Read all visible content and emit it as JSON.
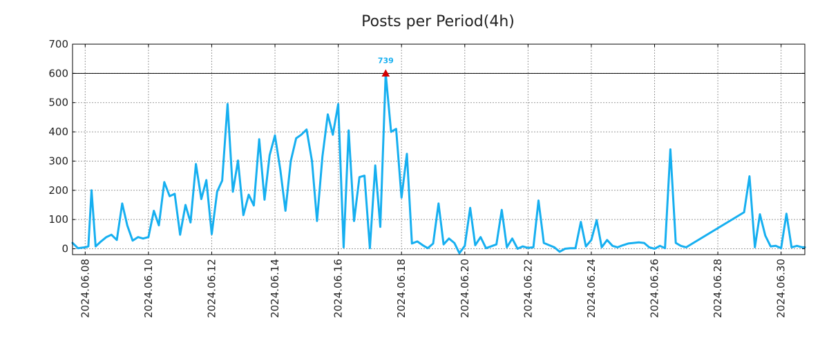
{
  "chart_data": {
    "type": "line",
    "title": "Posts per Period(4h)",
    "xlabel": "",
    "ylabel": "",
    "ylim": [
      -20,
      700
    ],
    "yticks": [
      0,
      100,
      200,
      300,
      400,
      500,
      600,
      700
    ],
    "xlim_days": [
      7.6,
      30.75
    ],
    "xticks": [
      {
        "day": 8,
        "label": "2024.06.08"
      },
      {
        "day": 10,
        "label": "2024.06.10"
      },
      {
        "day": 12,
        "label": "2024.06.12"
      },
      {
        "day": 14,
        "label": "2024.06.14"
      },
      {
        "day": 16,
        "label": "2024.06.16"
      },
      {
        "day": 18,
        "label": "2024.06.18"
      },
      {
        "day": 20,
        "label": "2024.06.20"
      },
      {
        "day": 22,
        "label": "2024.06.22"
      },
      {
        "day": 24,
        "label": "2024.06.24"
      },
      {
        "day": 26,
        "label": "2024.06.26"
      },
      {
        "day": 28,
        "label": "2024.06.28"
      },
      {
        "day": 30,
        "label": "2024.06.30"
      }
    ],
    "grid": true,
    "reference_line": 600,
    "peak": {
      "day": 17.5,
      "plotted_value": 600,
      "label": "739"
    },
    "colors": {
      "line": "#16aff0",
      "peak_marker": "#d40000",
      "peak_label": "#16aff0",
      "reference": "#000000",
      "grid": "#999999"
    },
    "series": [
      {
        "name": "posts",
        "points": [
          [
            7.6,
            20
          ],
          [
            7.77,
            2
          ],
          [
            8.0,
            5
          ],
          [
            8.1,
            8
          ],
          [
            8.2,
            200
          ],
          [
            8.33,
            8
          ],
          [
            8.5,
            25
          ],
          [
            8.67,
            40
          ],
          [
            8.83,
            48
          ],
          [
            9.0,
            30
          ],
          [
            9.17,
            155
          ],
          [
            9.33,
            80
          ],
          [
            9.5,
            28
          ],
          [
            9.67,
            40
          ],
          [
            9.83,
            35
          ],
          [
            10.0,
            40
          ],
          [
            10.17,
            130
          ],
          [
            10.33,
            80
          ],
          [
            10.5,
            228
          ],
          [
            10.67,
            180
          ],
          [
            10.83,
            188
          ],
          [
            11.0,
            48
          ],
          [
            11.17,
            150
          ],
          [
            11.33,
            90
          ],
          [
            11.5,
            290
          ],
          [
            11.67,
            170
          ],
          [
            11.83,
            235
          ],
          [
            12.0,
            50
          ],
          [
            12.17,
            195
          ],
          [
            12.33,
            233
          ],
          [
            12.5,
            495
          ],
          [
            12.67,
            195
          ],
          [
            12.83,
            302
          ],
          [
            13.0,
            115
          ],
          [
            13.17,
            185
          ],
          [
            13.33,
            148
          ],
          [
            13.5,
            375
          ],
          [
            13.67,
            168
          ],
          [
            13.83,
            320
          ],
          [
            14.0,
            388
          ],
          [
            14.17,
            270
          ],
          [
            14.33,
            130
          ],
          [
            14.5,
            300
          ],
          [
            14.67,
            378
          ],
          [
            14.83,
            390
          ],
          [
            15.0,
            408
          ],
          [
            15.17,
            300
          ],
          [
            15.33,
            95
          ],
          [
            15.5,
            315
          ],
          [
            15.67,
            460
          ],
          [
            15.83,
            390
          ],
          [
            16.0,
            495
          ],
          [
            16.17,
            5
          ],
          [
            16.33,
            405
          ],
          [
            16.5,
            95
          ],
          [
            16.67,
            245
          ],
          [
            16.83,
            250
          ],
          [
            17.0,
            2
          ],
          [
            17.17,
            285
          ],
          [
            17.33,
            75
          ],
          [
            17.5,
            600
          ],
          [
            17.67,
            400
          ],
          [
            17.83,
            410
          ],
          [
            18.0,
            175
          ],
          [
            18.17,
            325
          ],
          [
            18.33,
            18
          ],
          [
            18.5,
            25
          ],
          [
            18.67,
            12
          ],
          [
            18.83,
            2
          ],
          [
            19.0,
            18
          ],
          [
            19.17,
            155
          ],
          [
            19.33,
            15
          ],
          [
            19.5,
            35
          ],
          [
            19.67,
            20
          ],
          [
            19.83,
            -15
          ],
          [
            20.0,
            10
          ],
          [
            20.17,
            140
          ],
          [
            20.33,
            12
          ],
          [
            20.5,
            40
          ],
          [
            20.67,
            2
          ],
          [
            20.83,
            8
          ],
          [
            21.0,
            15
          ],
          [
            21.17,
            133
          ],
          [
            21.33,
            5
          ],
          [
            21.5,
            35
          ],
          [
            21.67,
            0
          ],
          [
            21.83,
            8
          ],
          [
            22.0,
            3
          ],
          [
            22.17,
            5
          ],
          [
            22.33,
            165
          ],
          [
            22.5,
            20
          ],
          [
            22.67,
            12
          ],
          [
            22.83,
            5
          ],
          [
            23.0,
            -10
          ],
          [
            23.17,
            0
          ],
          [
            23.33,
            2
          ],
          [
            23.5,
            2
          ],
          [
            23.67,
            92
          ],
          [
            23.83,
            8
          ],
          [
            24.0,
            30
          ],
          [
            24.17,
            98
          ],
          [
            24.33,
            5
          ],
          [
            24.5,
            30
          ],
          [
            24.67,
            10
          ],
          [
            24.83,
            5
          ],
          [
            25.0,
            12
          ],
          [
            25.17,
            18
          ],
          [
            25.33,
            20
          ],
          [
            25.5,
            22
          ],
          [
            25.67,
            20
          ],
          [
            25.83,
            5
          ],
          [
            26.0,
            0
          ],
          [
            26.17,
            10
          ],
          [
            26.33,
            2
          ],
          [
            26.5,
            340
          ],
          [
            26.67,
            20
          ],
          [
            26.83,
            10
          ],
          [
            27.0,
            5
          ],
          [
            28.83,
            125
          ],
          [
            29.0,
            248
          ],
          [
            29.17,
            5
          ],
          [
            29.33,
            118
          ],
          [
            29.5,
            45
          ],
          [
            29.67,
            8
          ],
          [
            29.83,
            10
          ],
          [
            30.0,
            2
          ],
          [
            30.17,
            120
          ],
          [
            30.33,
            5
          ],
          [
            30.5,
            10
          ],
          [
            30.67,
            5
          ],
          [
            30.75,
            5
          ]
        ]
      }
    ]
  }
}
